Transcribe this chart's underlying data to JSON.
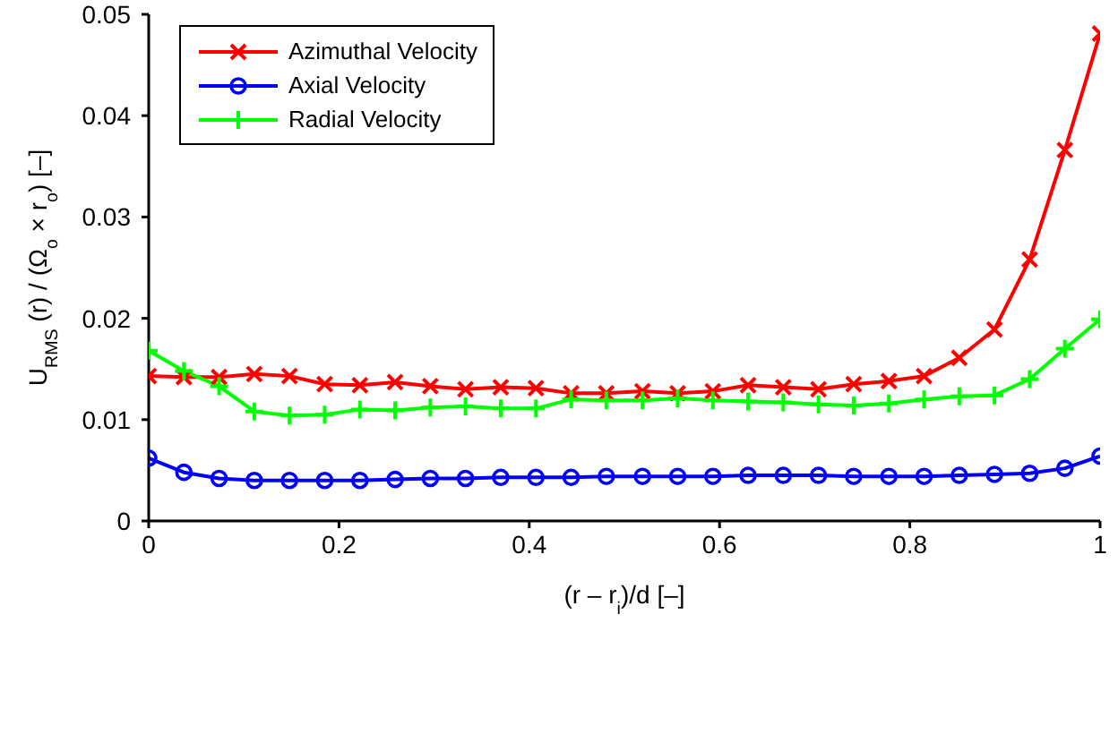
{
  "chart_data": {
    "type": "line",
    "xlabel": "(r – r$_{i}$)/d [–]",
    "ylabel": "U$_{RMS}$ (r) / (Ω$_{o}$ × r$_{o}$) [–]",
    "x": [
      0,
      0.037,
      0.074,
      0.111,
      0.148,
      0.185,
      0.222,
      0.259,
      0.296,
      0.333,
      0.37,
      0.407,
      0.444,
      0.481,
      0.519,
      0.556,
      0.593,
      0.63,
      0.667,
      0.704,
      0.741,
      0.778,
      0.815,
      0.852,
      0.889,
      0.926,
      0.963,
      1
    ],
    "series": [
      {
        "name": "Azimuthal Velocity",
        "color": "#ff0000",
        "marker": "cross",
        "values": [
          0.0143,
          0.0142,
          0.0142,
          0.0145,
          0.0143,
          0.0135,
          0.0134,
          0.0137,
          0.0133,
          0.013,
          0.0132,
          0.0131,
          0.0126,
          0.0126,
          0.0128,
          0.0126,
          0.0128,
          0.0134,
          0.0132,
          0.013,
          0.0135,
          0.0138,
          0.0143,
          0.0161,
          0.0189,
          0.0258,
          0.0366,
          0.0481
        ]
      },
      {
        "name": "Axial Velocity",
        "color": "#0000ff",
        "marker": "circle",
        "values": [
          0.0062,
          0.0048,
          0.0042,
          0.004,
          0.004,
          0.004,
          0.004,
          0.0041,
          0.0042,
          0.0042,
          0.0043,
          0.0043,
          0.0043,
          0.0044,
          0.0044,
          0.0044,
          0.0044,
          0.0045,
          0.0045,
          0.0045,
          0.0044,
          0.0044,
          0.0044,
          0.0045,
          0.0046,
          0.0047,
          0.0052,
          0.0064
        ]
      },
      {
        "name": "Radial Velocity",
        "color": "#00ff00",
        "marker": "plus",
        "values": [
          0.0168,
          0.0148,
          0.0133,
          0.0108,
          0.0104,
          0.0105,
          0.011,
          0.0109,
          0.0112,
          0.0113,
          0.0111,
          0.0111,
          0.012,
          0.0119,
          0.0119,
          0.0121,
          0.0119,
          0.0118,
          0.0117,
          0.0115,
          0.0114,
          0.0116,
          0.012,
          0.0123,
          0.0124,
          0.014,
          0.017,
          0.0199
        ]
      }
    ],
    "xlim": [
      0,
      1
    ],
    "xticks": [
      0,
      0.2,
      0.4,
      0.6,
      0.8,
      1
    ],
    "ylim": [
      0,
      0.05
    ],
    "yticks": [
      0,
      0.01,
      0.02,
      0.03,
      0.04,
      0.05
    ],
    "grid": false,
    "legend": "top left"
  }
}
